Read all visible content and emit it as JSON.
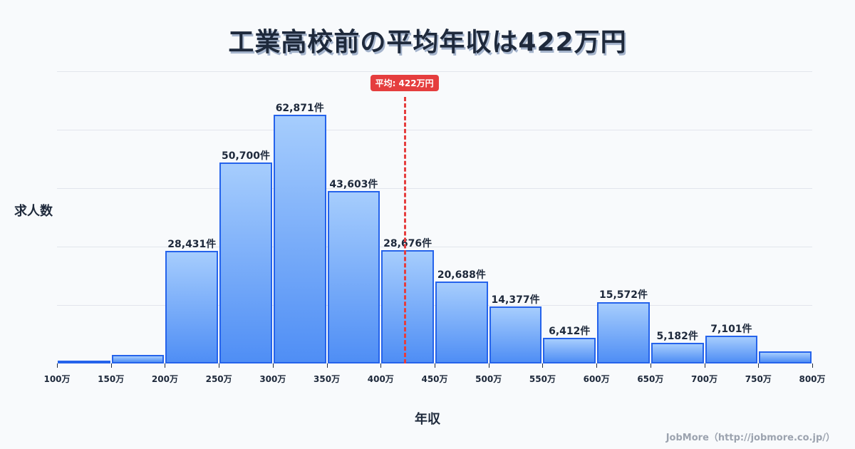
{
  "title": "工業高校前の平均年収は422万円",
  "ylabel": "求人数",
  "xlabel": "年収",
  "credit": "JobMore（http://jobmore.co.jp/）",
  "average": {
    "label": "平均: 422万円",
    "value": 422,
    "color": "#e53e3e"
  },
  "colors": {
    "bar_border": "#2563eb",
    "bar_top": "#a6cdfd",
    "bar_bottom": "#4f8ef5",
    "title": "#1e293b"
  },
  "chart_data": {
    "type": "bar",
    "title": "工業高校前の平均年収は422万円",
    "xlabel": "年収",
    "ylabel": "求人数",
    "x_ticks": [
      "100万",
      "150万",
      "200万",
      "250万",
      "300万",
      "350万",
      "400万",
      "450万",
      "500万",
      "550万",
      "600万",
      "650万",
      "700万",
      "750万",
      "800万"
    ],
    "categories": [
      "100-150万",
      "150-200万",
      "200-250万",
      "250-300万",
      "300-350万",
      "350-400万",
      "400-450万",
      "450-500万",
      "500-550万",
      "550-600万",
      "600-650万",
      "650-700万",
      "700-750万",
      "750-800万"
    ],
    "values": [
      300,
      2100,
      28431,
      50700,
      62871,
      43603,
      28676,
      20688,
      14377,
      6412,
      15572,
      5182,
      7101,
      3000
    ],
    "labels": [
      "",
      "",
      "28,431件",
      "50,700件",
      "62,871件",
      "43,603件",
      "28,676件",
      "20,688件",
      "14,377件",
      "6,412件",
      "15,572件",
      "5,182件",
      "7,101件",
      ""
    ],
    "ylim": [
      0,
      73800
    ],
    "grid": true,
    "average_line": {
      "x": 422,
      "label": "平均: 422万円"
    }
  }
}
